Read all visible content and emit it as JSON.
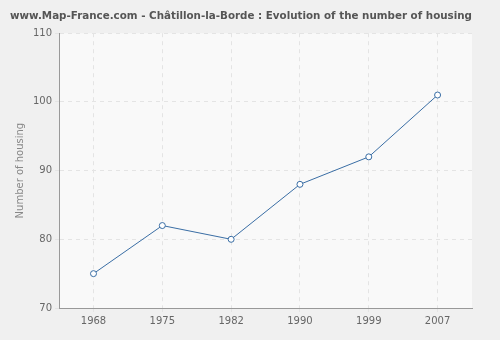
{
  "chart_data": {
    "type": "line",
    "title": "www.Map-France.com - Châtillon-la-Borde : Evolution of the number of housing",
    "y_label": "Number of housing",
    "categories": [
      "1968",
      "1975",
      "1982",
      "1990",
      "1999",
      "2007"
    ],
    "values": [
      75,
      82,
      80,
      88,
      92,
      101
    ],
    "color": "#3a6ea5",
    "marker": "circle",
    "ylim": [
      70,
      110
    ],
    "yticks": [
      70,
      80,
      90,
      100,
      110
    ],
    "grid": true
  }
}
